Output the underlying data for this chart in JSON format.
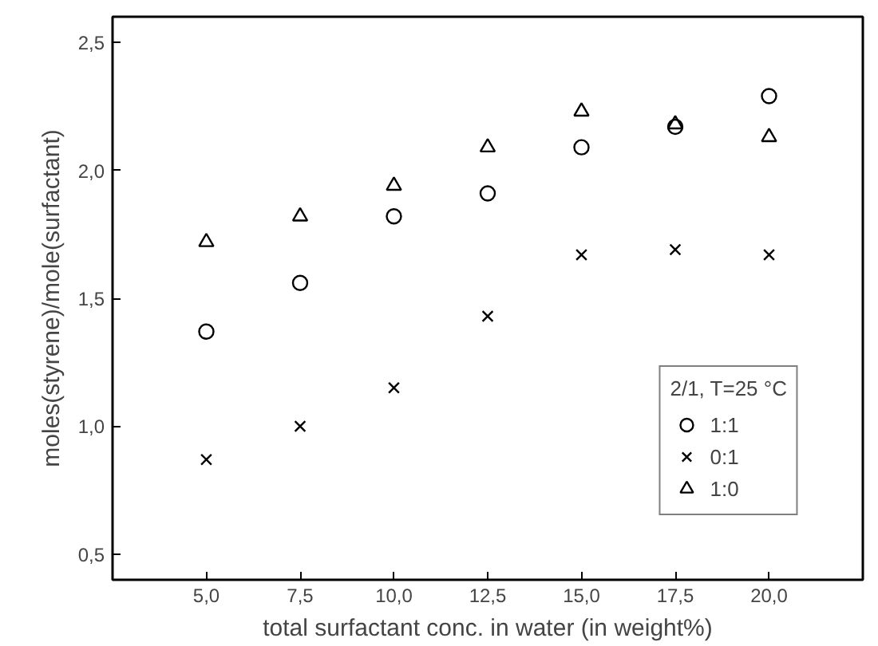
{
  "chart_data": {
    "type": "scatter",
    "xlabel": "total surfactant conc. in water (in weight%)",
    "ylabel": "moles(styrene)/mole(surfactant)",
    "legend_title": "2/1, T=25 °C",
    "x": [
      5,
      7.5,
      10,
      12.5,
      15,
      17.5,
      20
    ],
    "xlim": [
      2.5,
      22.5
    ],
    "ylim": [
      0.4,
      2.6
    ],
    "xticks": [
      {
        "value": 5,
        "label": "5,0"
      },
      {
        "value": 7.5,
        "label": "7,5"
      },
      {
        "value": 10,
        "label": "10,0"
      },
      {
        "value": 12.5,
        "label": "12,5"
      },
      {
        "value": 15,
        "label": "15,0"
      },
      {
        "value": 17.5,
        "label": "17,5"
      },
      {
        "value": 20,
        "label": "20,0"
      }
    ],
    "yticks": [
      {
        "value": 0.5,
        "label": "0,5"
      },
      {
        "value": 1.0,
        "label": "1,0"
      },
      {
        "value": 1.5,
        "label": "1,5"
      },
      {
        "value": 2.0,
        "label": "2,0"
      },
      {
        "value": 2.5,
        "label": "2,5"
      }
    ],
    "grid": false,
    "legend": "bottom right",
    "series": [
      {
        "name": "1:1",
        "color": "#000000",
        "marker": "circle",
        "values": [
          1.37,
          1.56,
          1.82,
          1.91,
          2.09,
          2.17,
          2.29
        ]
      },
      {
        "name": "0:1",
        "color": "#000000",
        "marker": "cross",
        "values": [
          0.87,
          1.0,
          1.15,
          1.43,
          1.67,
          1.69,
          1.67
        ]
      },
      {
        "name": "1:0",
        "color": "#000000",
        "marker": "triangle",
        "values": [
          1.72,
          1.82,
          1.94,
          2.09,
          2.23,
          2.18,
          2.13
        ]
      }
    ]
  }
}
